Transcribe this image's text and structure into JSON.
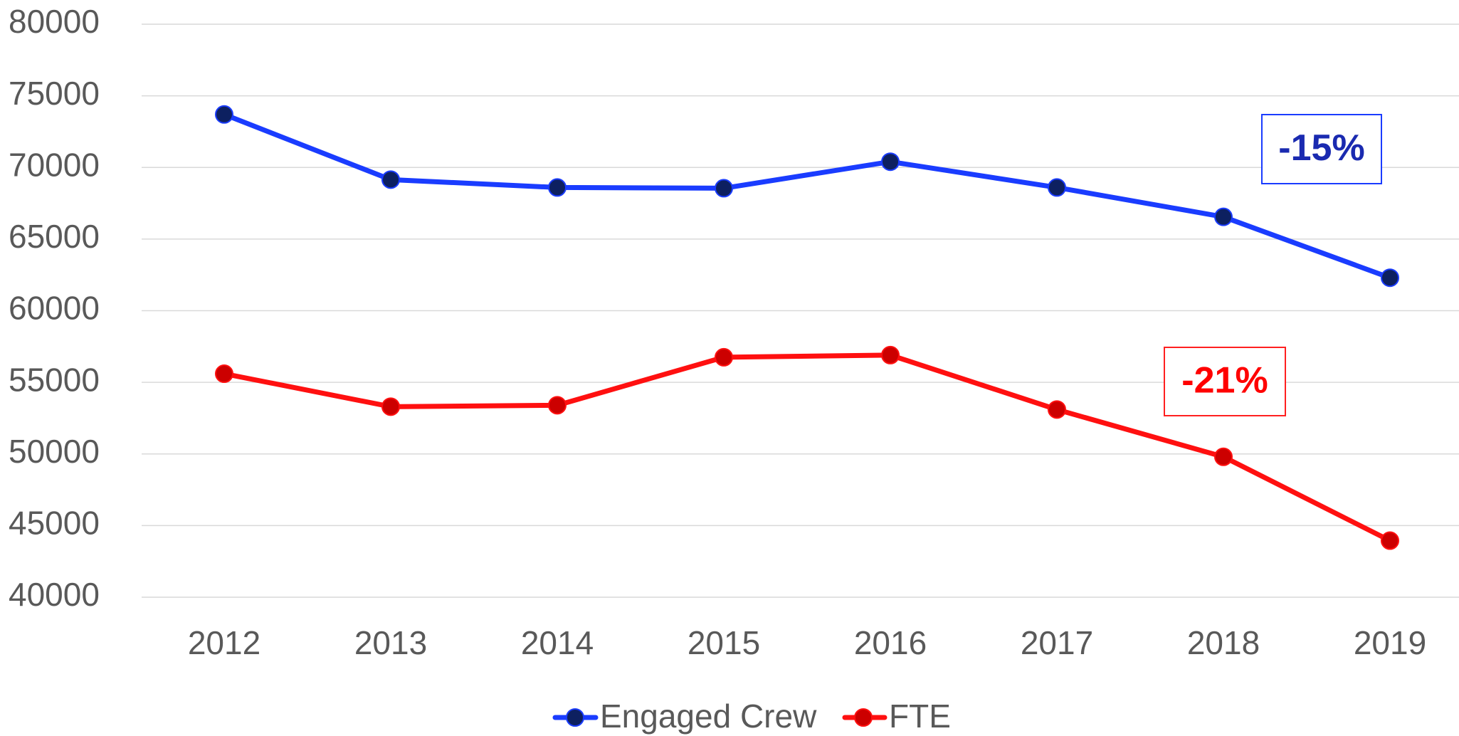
{
  "chart_data": {
    "type": "line",
    "categories": [
      "2012",
      "2013",
      "2014",
      "2015",
      "2016",
      "2017",
      "2018",
      "2019"
    ],
    "series": [
      {
        "name": "Engaged Crew",
        "color": "#1a3cff",
        "marker_color": "#0d2060",
        "values": [
          73700,
          69150,
          68600,
          68550,
          70400,
          68600,
          66550,
          62300
        ]
      },
      {
        "name": "FTE",
        "color": "#ff1010",
        "marker_color": "#cc0000",
        "values": [
          55600,
          53300,
          53400,
          56750,
          56900,
          53100,
          49800,
          43950
        ]
      }
    ],
    "ylim": [
      40000,
      80000
    ],
    "yticks": [
      40000,
      45000,
      50000,
      55000,
      60000,
      65000,
      70000,
      75000,
      80000
    ],
    "grid": true,
    "legend": "bottom",
    "annotations": [
      {
        "text": "-15%",
        "color": "#1a2ab0",
        "border": "#1a3cff"
      },
      {
        "text": "-21%",
        "color": "#ff0000",
        "border": "#ff2020"
      }
    ]
  }
}
